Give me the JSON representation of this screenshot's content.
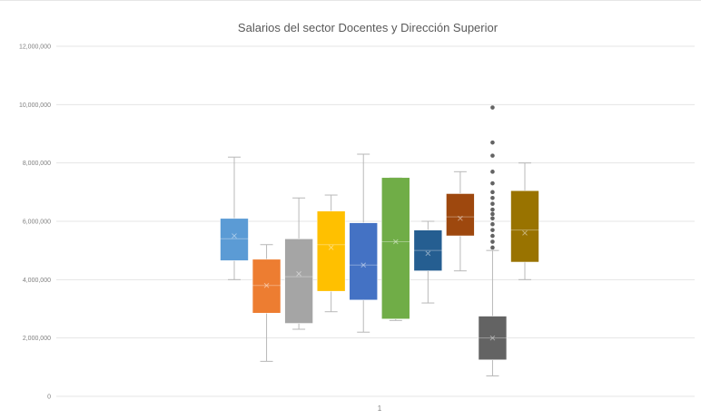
{
  "chart_data": {
    "type": "boxplot",
    "title": "Salarios del sector Docentes y Dirección Superior",
    "xlabel": "",
    "ylabel": "",
    "categories": [
      "1"
    ],
    "ylim": [
      0,
      12000000
    ],
    "yticks": [
      0,
      2000000,
      4000000,
      6000000,
      8000000,
      10000000,
      12000000
    ],
    "ytick_labels": [
      "0",
      "2,000,000",
      "4,000,000",
      "6,000,000",
      "8,000,000",
      "10,000,000",
      "12,000,000"
    ],
    "grid": true,
    "legend": "none",
    "series": [
      {
        "color": "#5B9BD5",
        "min": 4000000,
        "q1": 4650000,
        "median": 5400000,
        "q3": 6100000,
        "max": 8200000,
        "mean": 5500000,
        "outliers": []
      },
      {
        "color": "#ED7D31",
        "min": 1200000,
        "q1": 2850000,
        "median": 3800000,
        "q3": 4700000,
        "max": 5200000,
        "mean": 3800000,
        "outliers": []
      },
      {
        "color": "#A5A5A5",
        "min": 2300000,
        "q1": 2500000,
        "median": 4100000,
        "q3": 5400000,
        "max": 6800000,
        "mean": 4200000,
        "outliers": []
      },
      {
        "color": "#FFC000",
        "min": 2900000,
        "q1": 3600000,
        "median": 5200000,
        "q3": 6350000,
        "max": 6900000,
        "mean": 5100000,
        "outliers": []
      },
      {
        "color": "#4472C4",
        "min": 2200000,
        "q1": 3300000,
        "median": 4500000,
        "q3": 5950000,
        "max": 8300000,
        "mean": 4500000,
        "outliers": []
      },
      {
        "color": "#70AD47",
        "min": 2600000,
        "q1": 2650000,
        "median": 5300000,
        "q3": 7500000,
        "max": 7500000,
        "mean": 5300000,
        "outliers": []
      },
      {
        "color": "#255E91",
        "min": 3200000,
        "q1": 4300000,
        "median": 5000000,
        "q3": 5700000,
        "max": 6000000,
        "mean": 4900000,
        "outliers": []
      },
      {
        "color": "#9E480E",
        "min": 4300000,
        "q1": 5500000,
        "median": 6150000,
        "q3": 6950000,
        "max": 7700000,
        "mean": 6100000,
        "outliers": []
      },
      {
        "color": "#636363",
        "min": 700000,
        "q1": 1250000,
        "median": 2000000,
        "q3": 2750000,
        "max": 5000000,
        "mean": 2000000,
        "outliers": [
          5100000,
          5300000,
          5500000,
          5700000,
          5900000,
          6100000,
          6250000,
          6400000,
          6600000,
          6800000,
          7000000,
          7300000,
          7700000,
          8250000,
          8700000,
          9900000
        ]
      },
      {
        "color": "#997300",
        "min": 4000000,
        "q1": 4600000,
        "median": 5700000,
        "q3": 7050000,
        "max": 8000000,
        "mean": 5600000,
        "outliers": []
      }
    ]
  }
}
